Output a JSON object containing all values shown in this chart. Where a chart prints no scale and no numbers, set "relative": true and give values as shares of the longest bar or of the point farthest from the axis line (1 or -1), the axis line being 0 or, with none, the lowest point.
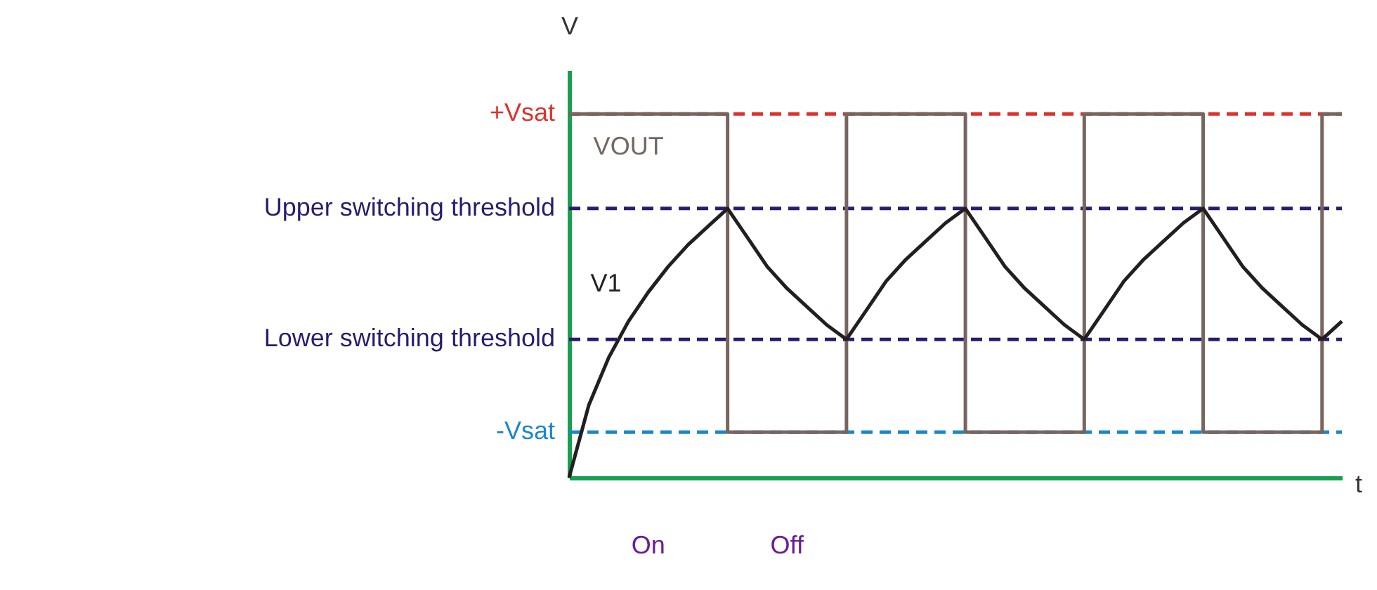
{
  "chart_data": {
    "type": "line",
    "relative": true,
    "xlabel": "t",
    "ylabel": "V",
    "categories": [
      null,
      null,
      null,
      null,
      null,
      null,
      null,
      null,
      null,
      null,
      null,
      null,
      null,
      null,
      null,
      null,
      null,
      null,
      null,
      null,
      null,
      null,
      null,
      null,
      null,
      null,
      null,
      null,
      null,
      null,
      null,
      null,
      null,
      null,
      null,
      null,
      null,
      null,
      null,
      null
    ],
    "series": [
      {
        "name": "VOUT",
        "type": "step",
        "color": "#76665f",
        "values": [
          1,
          1,
          1,
          1,
          1,
          1,
          1,
          1,
          0.125,
          0.125,
          0.125,
          0.125,
          0.125,
          0.125,
          1,
          1,
          1,
          1,
          1,
          1,
          0.125,
          0.125,
          0.125,
          0.125,
          0.125,
          0.125,
          1,
          1,
          1,
          1,
          1,
          1,
          0.125,
          0.125,
          0.125,
          0.125,
          0.125,
          0.125,
          1,
          1
        ]
      },
      {
        "name": "V1",
        "color": "#231f20",
        "values": [
          0,
          0.2,
          0.33,
          0.43,
          0.51,
          0.58,
          0.64,
          0.69,
          0.74,
          0.66,
          0.58,
          0.52,
          0.47,
          0.42,
          0.38,
          0.46,
          0.54,
          0.6,
          0.65,
          0.7,
          0.74,
          0.66,
          0.58,
          0.52,
          0.47,
          0.42,
          0.38,
          0.46,
          0.54,
          0.6,
          0.65,
          0.7,
          0.74,
          0.66,
          0.58,
          0.52,
          0.47,
          0.42,
          0.38,
          0.43
        ]
      }
    ],
    "ref_lines": [
      {
        "axis": "y",
        "value": 1,
        "label": "+Vsat",
        "color": "#e0302a",
        "line_style": "dashed"
      },
      {
        "axis": "y",
        "value": 0.74,
        "label": "Upper switching threshold",
        "color": "#2b1b6e",
        "line_style": "dashed"
      },
      {
        "axis": "y",
        "value": 0.38,
        "label": "Lower switching threshold",
        "color": "#2b1b6e",
        "line_style": "dashed"
      },
      {
        "axis": "y",
        "value": 0.125,
        "label": "-Vsat",
        "color": "#1a86cc",
        "line_style": "dashed"
      }
    ],
    "annotations": [
      "On",
      "Off"
    ],
    "legend": false,
    "grid": false,
    "marker": "none",
    "line_style": "solid"
  }
}
